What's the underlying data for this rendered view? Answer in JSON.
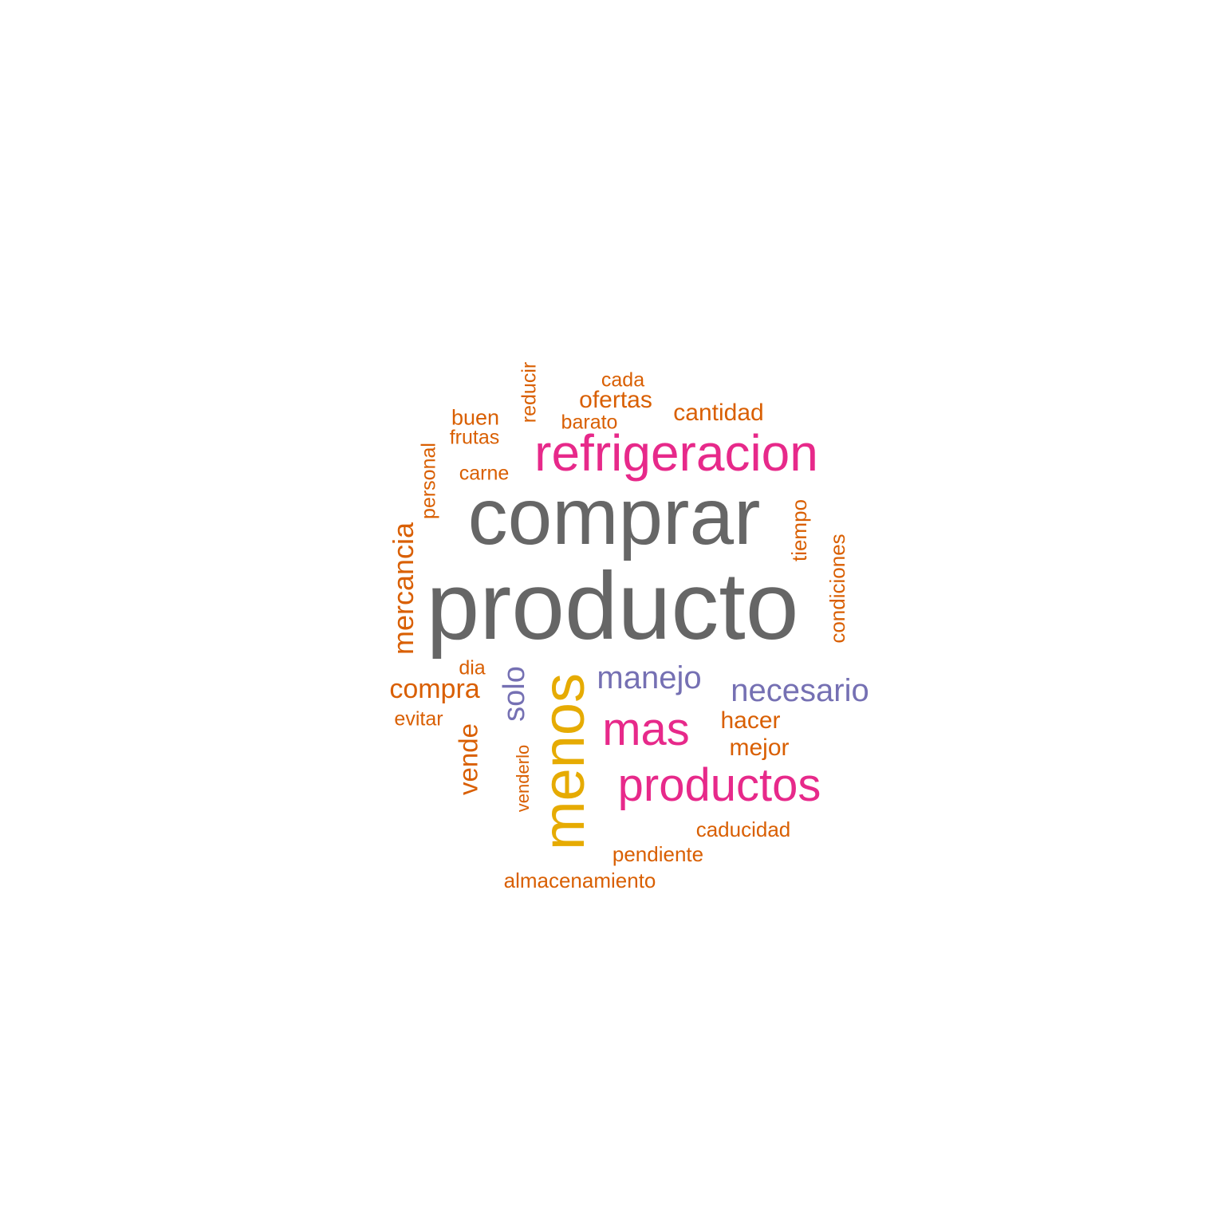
{
  "palette": {
    "gray": "#666666",
    "pink": "#E7298A",
    "gold": "#E6AB02",
    "purple": "#7570B3",
    "orange": "#D95F02"
  },
  "words": [
    {
      "text": "producto",
      "color": "#666666",
      "vertical": false
    },
    {
      "text": "comprar",
      "color": "#666666",
      "vertical": false
    },
    {
      "text": "refrigeracion",
      "color": "#E7298A",
      "vertical": false
    },
    {
      "text": "menos",
      "color": "#E6AB02",
      "vertical": true
    },
    {
      "text": "productos",
      "color": "#E7298A",
      "vertical": false
    },
    {
      "text": "mas",
      "color": "#E7298A",
      "vertical": false
    },
    {
      "text": "necesario",
      "color": "#7570B3",
      "vertical": false
    },
    {
      "text": "manejo",
      "color": "#7570B3",
      "vertical": false
    },
    {
      "text": "solo",
      "color": "#7570B3",
      "vertical": true
    },
    {
      "text": "mercancia",
      "color": "#D95F02",
      "vertical": true
    },
    {
      "text": "compra",
      "color": "#D95F02",
      "vertical": false
    },
    {
      "text": "vende",
      "color": "#D95F02",
      "vertical": true
    },
    {
      "text": "cantidad",
      "color": "#D95F02",
      "vertical": false
    },
    {
      "text": "ofertas",
      "color": "#D95F02",
      "vertical": false
    },
    {
      "text": "hacer",
      "color": "#D95F02",
      "vertical": false
    },
    {
      "text": "mejor",
      "color": "#D95F02",
      "vertical": false
    },
    {
      "text": "condiciones",
      "color": "#D95F02",
      "vertical": true
    },
    {
      "text": "caducidad",
      "color": "#D95F02",
      "vertical": false
    },
    {
      "text": "pendiente",
      "color": "#D95F02",
      "vertical": false
    },
    {
      "text": "almacenamiento",
      "color": "#D95F02",
      "vertical": false
    },
    {
      "text": "tiempo",
      "color": "#D95F02",
      "vertical": true
    },
    {
      "text": "personal",
      "color": "#D95F02",
      "vertical": true
    },
    {
      "text": "buen",
      "color": "#D95F02",
      "vertical": false
    },
    {
      "text": "frutas",
      "color": "#D95F02",
      "vertical": false
    },
    {
      "text": "carne",
      "color": "#D95F02",
      "vertical": false
    },
    {
      "text": "cada",
      "color": "#D95F02",
      "vertical": false
    },
    {
      "text": "barato",
      "color": "#D95F02",
      "vertical": false
    },
    {
      "text": "reducir",
      "color": "#D95F02",
      "vertical": true
    },
    {
      "text": "dia",
      "color": "#D95F02",
      "vertical": false
    },
    {
      "text": "evitar",
      "color": "#D95F02",
      "vertical": false
    },
    {
      "text": "venderlo",
      "color": "#D95F02",
      "vertical": true
    }
  ]
}
